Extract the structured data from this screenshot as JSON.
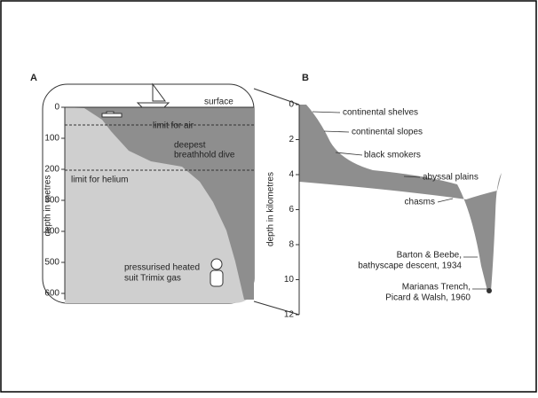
{
  "panel_a": {
    "label": "A",
    "surface": "surface",
    "axis_label": "depth in metres",
    "ticks": [
      0,
      100,
      200,
      300,
      400,
      500,
      600
    ],
    "limit_air": "limit for air",
    "deepest": [
      "deepest",
      "breathhold dive"
    ],
    "limit_helium": "limit for helium",
    "suit": [
      "pressurised heated",
      "suit Trimix gas"
    ]
  },
  "panel_b": {
    "label": "B",
    "axis_label": "depth in kilometres",
    "ticks": [
      0,
      2,
      4,
      6,
      8,
      10,
      12
    ],
    "labels": [
      "continental shelves",
      "continental slopes",
      "black smokers",
      "abyssal plains",
      "chasms"
    ],
    "barton": [
      "Barton & Beebe,",
      "bathyscape descent, 1934"
    ],
    "marianas": [
      "Marianas Trench,",
      "Picard & Walsh, 1960"
    ]
  }
}
